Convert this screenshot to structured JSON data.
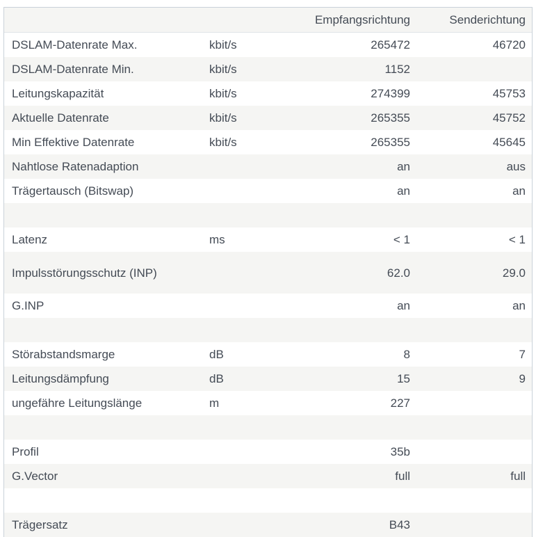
{
  "header": {
    "label": "",
    "unit": "",
    "downstream": "Empfangsrichtung",
    "upstream": "Senderichtung"
  },
  "rows": [
    {
      "label": "DSLAM-Datenrate Max.",
      "unit": "kbit/s",
      "down": "265472",
      "up": "46720"
    },
    {
      "label": "DSLAM-Datenrate Min.",
      "unit": "kbit/s",
      "down": "1152",
      "up": ""
    },
    {
      "label": "Leitungskapazität",
      "unit": "kbit/s",
      "down": "274399",
      "up": "45753"
    },
    {
      "label": "Aktuelle Datenrate",
      "unit": "kbit/s",
      "down": "265355",
      "up": "45752"
    },
    {
      "label": "Min Effektive Datenrate",
      "unit": "kbit/s",
      "down": "265355",
      "up": "45645"
    },
    {
      "label": "Nahtlose Ratenadaption",
      "unit": "",
      "down": "an",
      "up": "aus"
    },
    {
      "label": "Trägertausch (Bitswap)",
      "unit": "",
      "down": "an",
      "up": "an"
    },
    {
      "label": "",
      "unit": "",
      "down": "",
      "up": ""
    },
    {
      "label": "Latenz",
      "unit": "ms",
      "down": "< 1",
      "up": "< 1"
    },
    {
      "label": "Impulsstörungsschutz (INP)",
      "unit": "",
      "down": "62.0",
      "up": "29.0"
    },
    {
      "label": "G.INP",
      "unit": "",
      "down": "an",
      "up": "an"
    },
    {
      "label": "",
      "unit": "",
      "down": "",
      "up": ""
    },
    {
      "label": "Störabstandsmarge",
      "unit": "dB",
      "down": "8",
      "up": "7"
    },
    {
      "label": "Leitungsdämpfung",
      "unit": "dB",
      "down": "15",
      "up": "9"
    },
    {
      "label": "ungefähre Leitungslänge",
      "unit": "m",
      "down": "227",
      "up": ""
    },
    {
      "label": "",
      "unit": "",
      "down": "",
      "up": ""
    },
    {
      "label": "Profil",
      "unit": "",
      "down": "35b",
      "up": ""
    },
    {
      "label": "G.Vector",
      "unit": "",
      "down": "full",
      "up": "full"
    },
    {
      "label": "",
      "unit": "",
      "down": "",
      "up": ""
    },
    {
      "label": "Trägersatz",
      "unit": "",
      "down": "B43",
      "up": ""
    }
  ]
}
